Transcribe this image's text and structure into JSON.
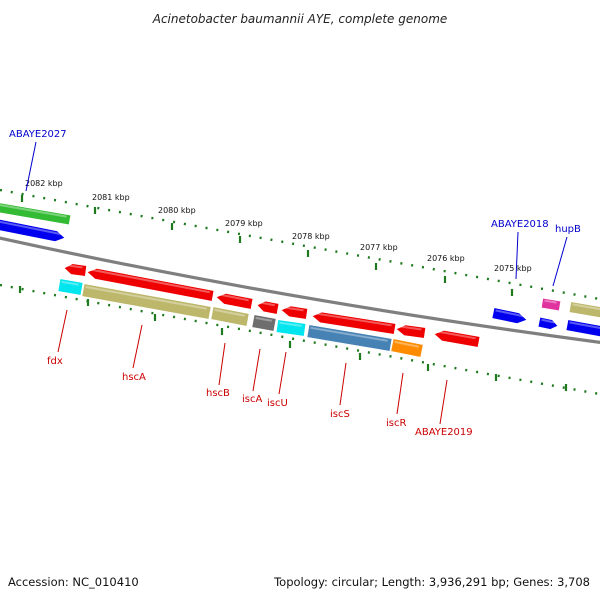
{
  "title": "Acinetobacter baumannii AYE, complete genome",
  "footer": {
    "accession": "Accession: NC_010410",
    "summary": "Topology: circular; Length: 3,936,291 bp; Genes: 3,708"
  },
  "colors": {
    "backbone": "#7f7f7f",
    "tick": "#1e7a1e",
    "label_red": "#cc0000",
    "label_blue": "#0000cc",
    "gene_red": "#ee0000",
    "gene_blue": "#0000ee",
    "gene_green": "#33bb33",
    "gene_khaki": "#bdb76b",
    "gene_cyan": "#00e5ee",
    "gene_gray": "#6e6e6e",
    "gene_steel": "#4682b4",
    "gene_orange": "#ff8c00",
    "gene_magenta": "#e0339f"
  },
  "map": {
    "kbp_ticks": [
      {
        "label": "2082 kbp"
      },
      {
        "label": "2081 kbp"
      },
      {
        "label": "2080 kbp"
      },
      {
        "label": "2079 kbp"
      },
      {
        "label": "2078 kbp"
      },
      {
        "label": "2077 kbp"
      },
      {
        "label": "2076 kbp"
      },
      {
        "label": "2075 kbp"
      }
    ],
    "gene_labels": [
      {
        "name": "ABAYE2027",
        "color": "blue"
      },
      {
        "name": "ABAYE2018",
        "color": "blue"
      },
      {
        "name": "hupB",
        "color": "blue"
      },
      {
        "name": "fdx",
        "color": "red"
      },
      {
        "name": "hscA",
        "color": "red"
      },
      {
        "name": "hscB",
        "color": "red"
      },
      {
        "name": "iscA",
        "color": "red"
      },
      {
        "name": "iscU",
        "color": "red"
      },
      {
        "name": "iscS",
        "color": "red"
      },
      {
        "name": "iscR",
        "color": "red"
      },
      {
        "name": "ABAYE2019",
        "color": "red"
      }
    ]
  }
}
